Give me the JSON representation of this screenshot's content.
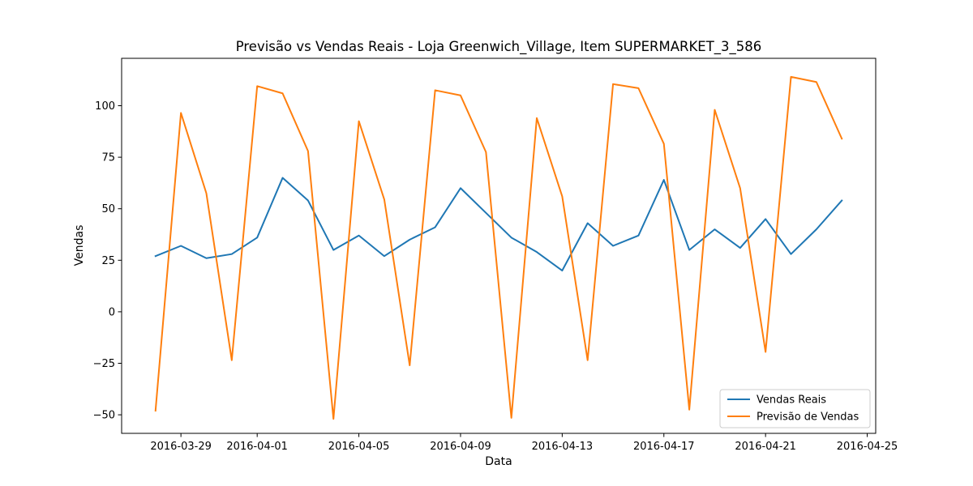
{
  "chart_data": {
    "type": "line",
    "title": "Previsão vs Vendas Reais - Loja Greenwich_Village, Item SUPERMARKET_3_586",
    "xlabel": "Data",
    "ylabel": "Vendas",
    "x": [
      "2016-03-28",
      "2016-03-29",
      "2016-03-30",
      "2016-03-31",
      "2016-04-01",
      "2016-04-02",
      "2016-04-03",
      "2016-04-04",
      "2016-04-05",
      "2016-04-06",
      "2016-04-07",
      "2016-04-08",
      "2016-04-09",
      "2016-04-10",
      "2016-04-11",
      "2016-04-12",
      "2016-04-13",
      "2016-04-14",
      "2016-04-15",
      "2016-04-16",
      "2016-04-17",
      "2016-04-18",
      "2016-04-19",
      "2016-04-20",
      "2016-04-21",
      "2016-04-22",
      "2016-04-23",
      "2016-04-24"
    ],
    "series": [
      {
        "name": "Vendas Reais",
        "color": "#1f77b4",
        "values": [
          27,
          32,
          26,
          28,
          36,
          65,
          54,
          30,
          37,
          27,
          35,
          41,
          60,
          48,
          36,
          29,
          20,
          43,
          32,
          37,
          64,
          30,
          40,
          31,
          45,
          28,
          40,
          54
        ]
      },
      {
        "name": "Previsão de Vendas",
        "color": "#ff7f0e",
        "values": [
          -48,
          96.5,
          57.5,
          -23.5,
          109.5,
          106,
          78,
          -52,
          92.5,
          54.5,
          -26,
          107.5,
          105,
          77.5,
          -51.5,
          94,
          56,
          -23.5,
          110.5,
          108.5,
          81.5,
          -47.5,
          98,
          60,
          -19.5,
          114,
          111.5,
          84
        ]
      }
    ],
    "xlim": [
      "2016-03-26T16:00",
      "2016-04-25T08:00"
    ],
    "ylim": [
      -59,
      123
    ],
    "xticks": [
      "2016-03-29",
      "2016-04-01",
      "2016-04-05",
      "2016-04-09",
      "2016-04-13",
      "2016-04-17",
      "2016-04-21",
      "2016-04-25"
    ],
    "yticks": [
      -50,
      -25,
      0,
      25,
      50,
      75,
      100
    ],
    "grid": false,
    "legend_position": "lower-right"
  }
}
